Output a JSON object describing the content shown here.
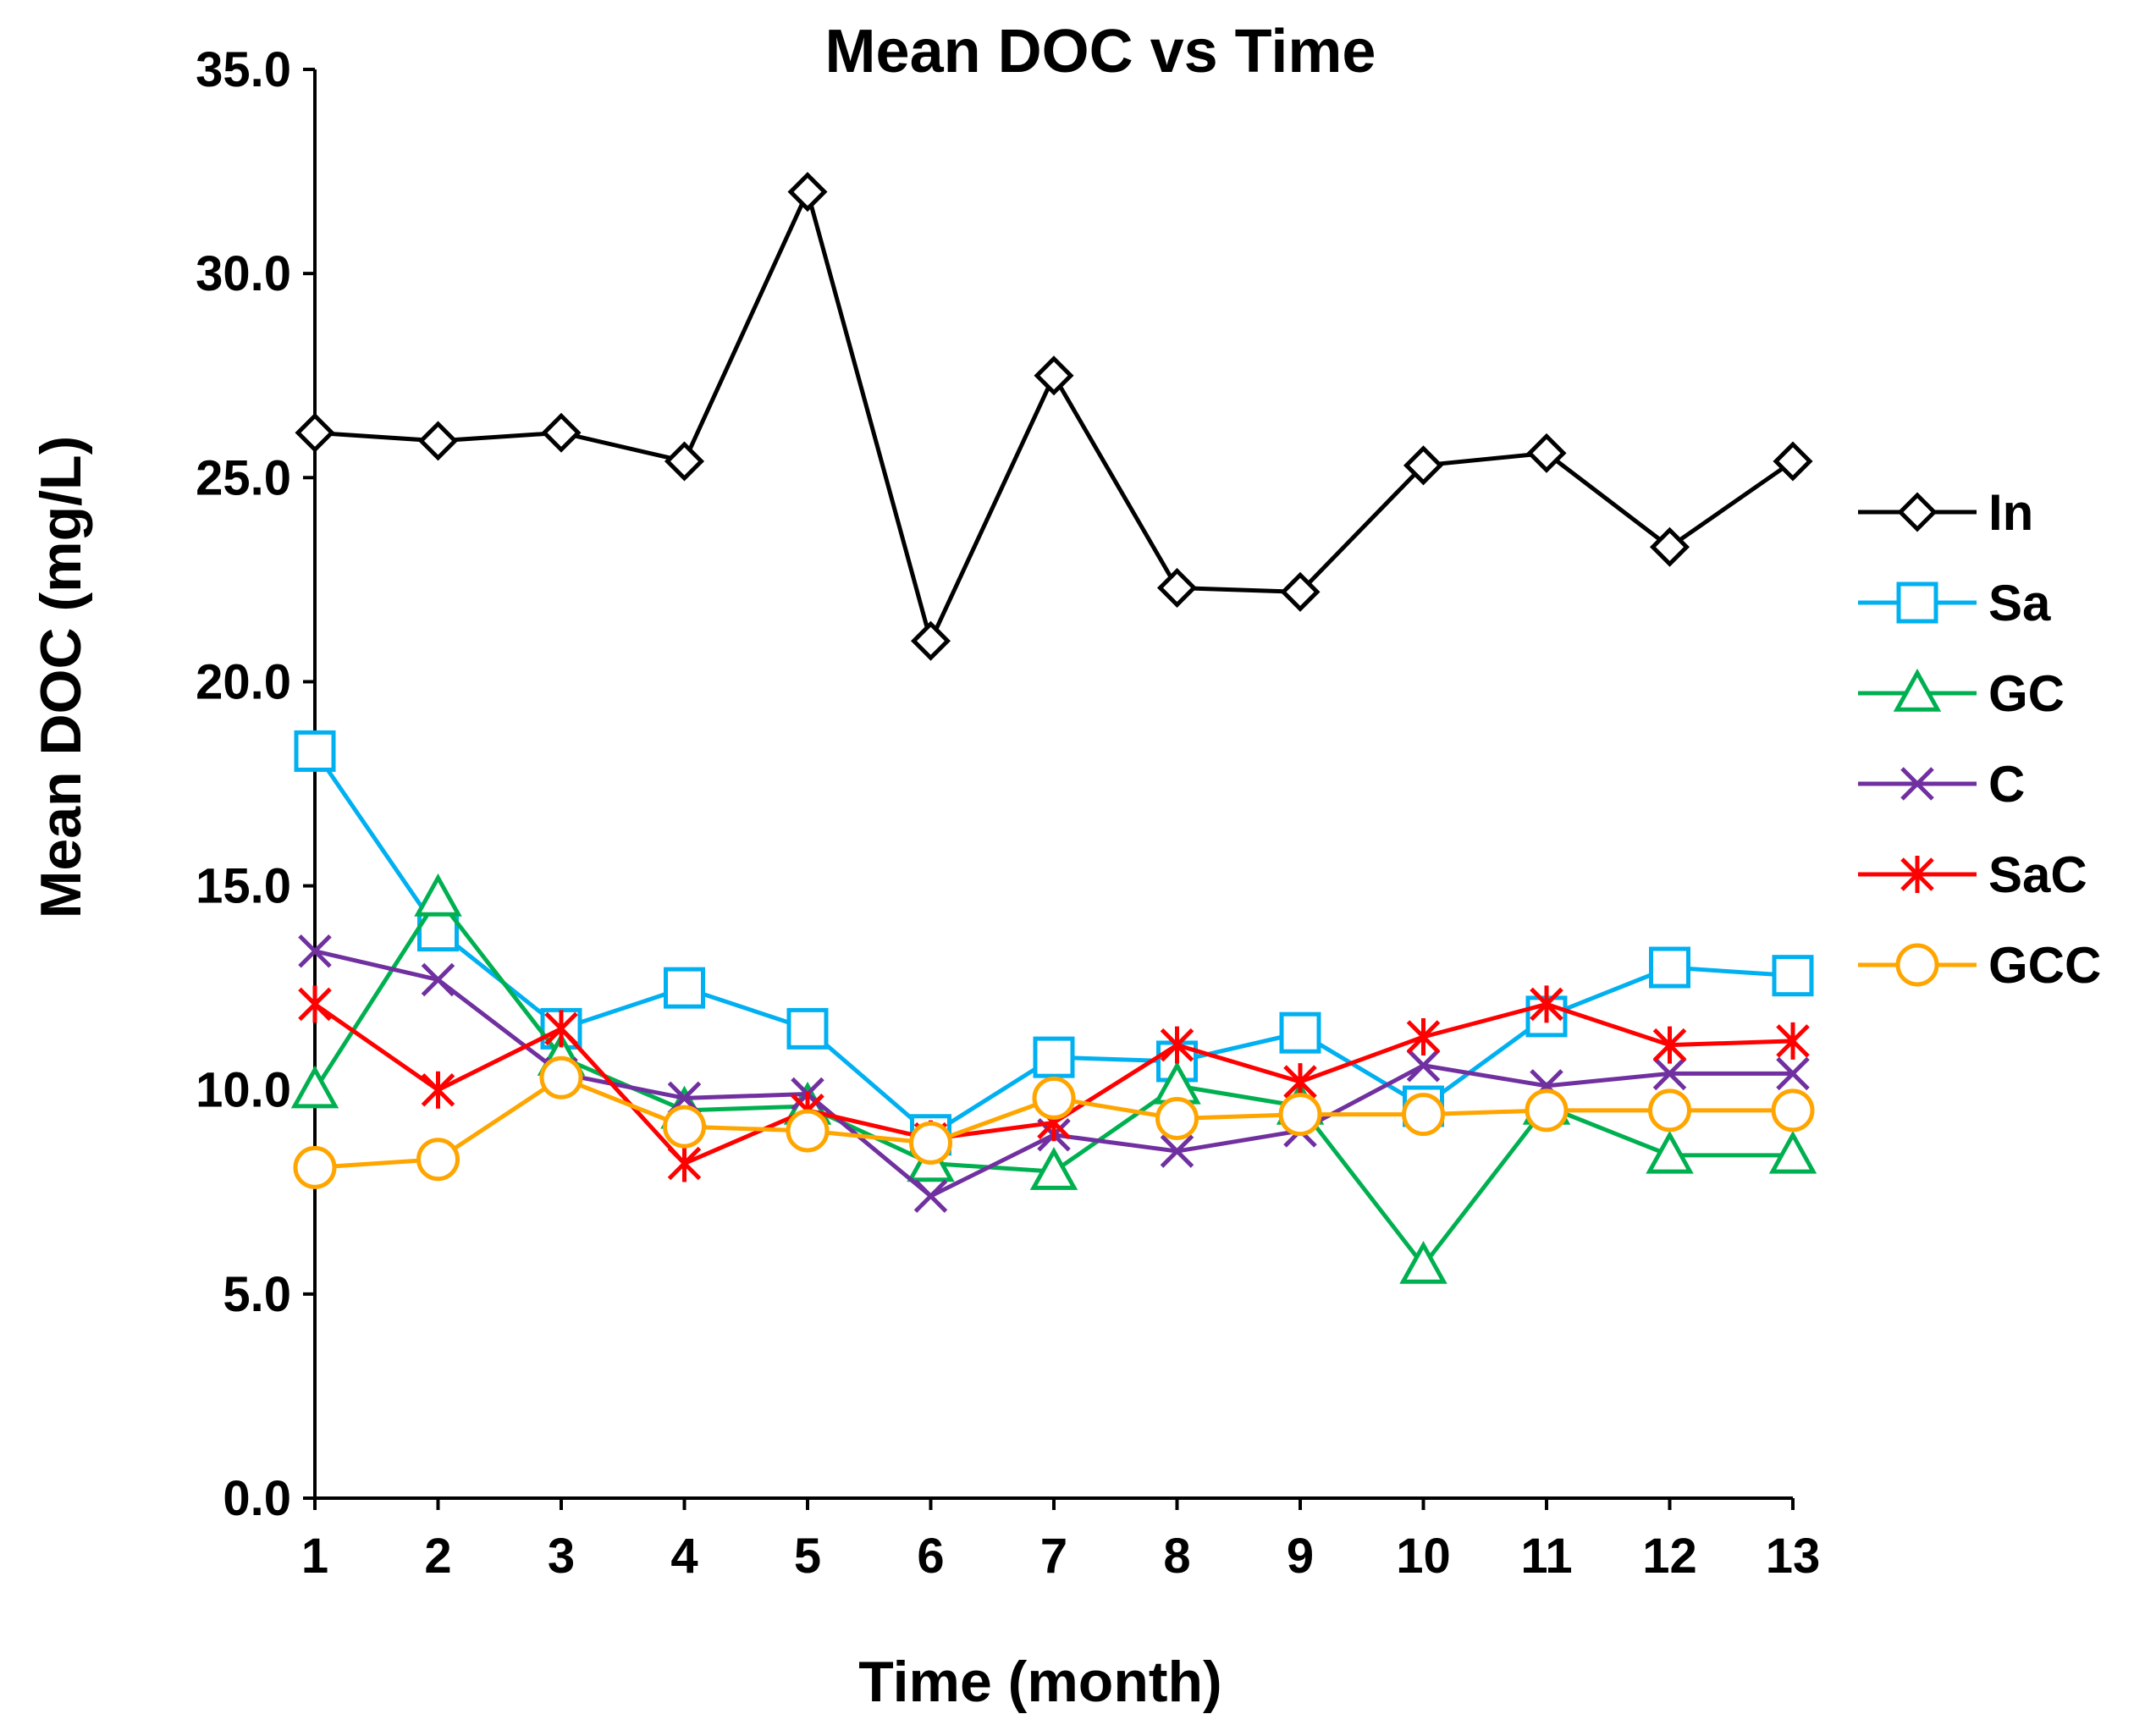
{
  "chart_data": {
    "type": "line",
    "title": "Mean DOC vs Time",
    "xlabel": "Time (month)",
    "ylabel": "Mean DOC (mg/L)",
    "x": [
      1,
      2,
      3,
      4,
      5,
      6,
      7,
      8,
      9,
      10,
      11,
      12,
      13
    ],
    "x_tick_labels": [
      "1",
      "2",
      "3",
      "4",
      "5",
      "6",
      "7",
      "8",
      "9",
      "10",
      "11",
      "12",
      "13"
    ],
    "ylim": [
      0,
      35
    ],
    "y_ticks": [
      0,
      5,
      10,
      15,
      20,
      25,
      30,
      35
    ],
    "y_tick_labels": [
      "0.0",
      "5.0",
      "10.0",
      "15.0",
      "20.0",
      "25.0",
      "30.0",
      "35.0"
    ],
    "grid": false,
    "legend_position": "right",
    "series": [
      {
        "name": "In",
        "color": "#000000",
        "marker": "diamond",
        "values": [
          26.1,
          25.9,
          26.1,
          25.4,
          32.0,
          21.0,
          27.5,
          22.3,
          22.2,
          25.3,
          25.6,
          23.3,
          25.4
        ]
      },
      {
        "name": "Sa",
        "color": "#00b0f0",
        "marker": "square",
        "values": [
          18.3,
          13.9,
          11.5,
          12.5,
          11.5,
          8.9,
          10.8,
          10.7,
          11.4,
          9.6,
          11.8,
          13.0,
          12.8
        ]
      },
      {
        "name": "GC",
        "color": "#00b050",
        "marker": "triangle",
        "values": [
          10.0,
          14.7,
          10.8,
          9.5,
          9.6,
          8.2,
          8.0,
          10.1,
          9.6,
          5.7,
          9.6,
          8.4,
          8.4
        ]
      },
      {
        "name": "C",
        "color": "#7030a0",
        "marker": "x",
        "values": [
          13.4,
          12.7,
          10.4,
          9.8,
          9.9,
          7.4,
          8.9,
          8.5,
          9.0,
          10.6,
          10.1,
          10.4,
          10.4
        ]
      },
      {
        "name": "SaC",
        "color": "#ff0000",
        "marker": "asterisk",
        "values": [
          12.1,
          10.0,
          11.5,
          8.2,
          9.5,
          8.8,
          9.2,
          11.1,
          10.2,
          11.3,
          12.1,
          11.1,
          11.2
        ]
      },
      {
        "name": "GCC",
        "color": "#ffa500",
        "marker": "circle",
        "values": [
          8.1,
          8.3,
          10.3,
          9.1,
          9.0,
          8.7,
          9.8,
          9.3,
          9.4,
          9.4,
          9.5,
          9.5,
          9.5
        ]
      }
    ]
  }
}
